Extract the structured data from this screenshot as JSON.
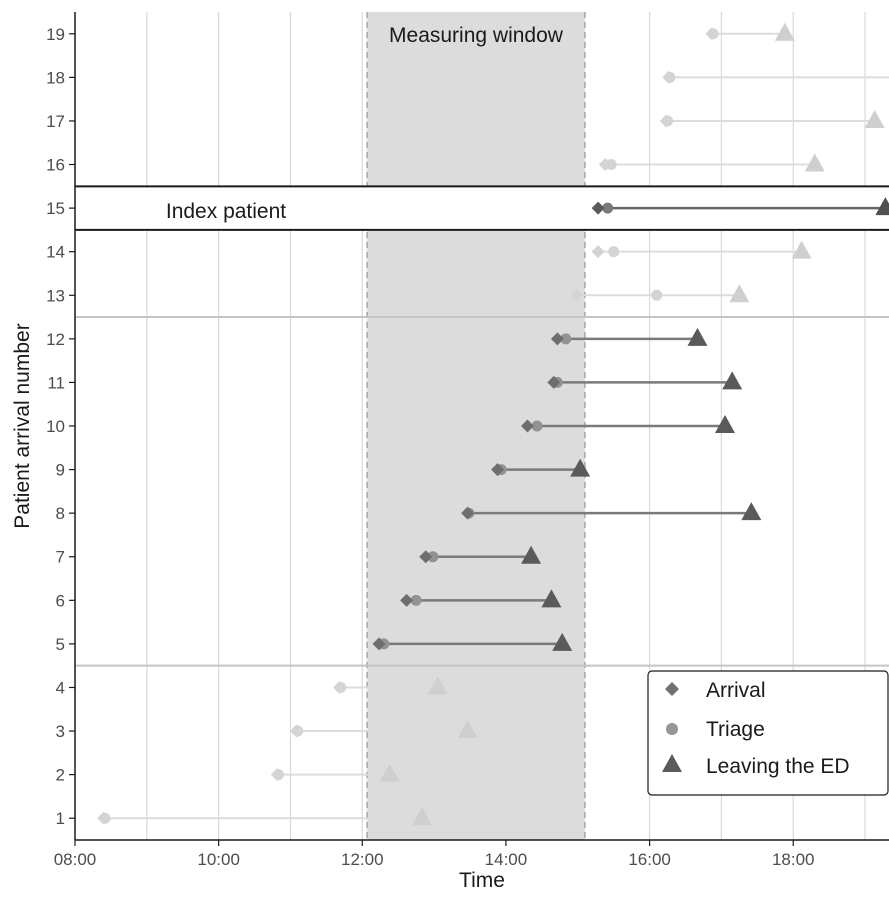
{
  "chart_data": {
    "type": "scatter",
    "title": "",
    "xlabel": "Time",
    "ylabel": "Patient arrival number",
    "xlim": [
      "08:00",
      "19:20"
    ],
    "ylim": [
      0.5,
      19.5
    ],
    "xticks": [
      "08:00",
      "10:00",
      "12:00",
      "14:00",
      "16:00",
      "18:00"
    ],
    "yticks": [
      "1",
      "2",
      "3",
      "4",
      "5",
      "6",
      "7",
      "8",
      "9",
      "10",
      "11",
      "12",
      "13",
      "14",
      "15",
      "16",
      "17",
      "18",
      "19"
    ],
    "grid": true,
    "legend_position": "bottom-right",
    "measuring_window": {
      "label": "Measuring window",
      "start": "12:04",
      "end": "15:06"
    },
    "index_patient": {
      "label": "Index patient",
      "patient": 15
    },
    "group_separators": [
      4.5,
      12.5
    ],
    "series": [
      {
        "name": "Arrival",
        "marker": "diamond"
      },
      {
        "name": "Triage",
        "marker": "circle"
      },
      {
        "name": "Leaving the ED",
        "marker": "triangle"
      }
    ],
    "patients": [
      {
        "id": 1,
        "arrival": "08:24",
        "triage": "08:25",
        "leave": "12:50",
        "emphasis": "faded"
      },
      {
        "id": 2,
        "arrival": "10:49",
        "triage": "10:50",
        "leave": "12:23",
        "emphasis": "faded"
      },
      {
        "id": 3,
        "arrival": "11:05",
        "triage": "11:06",
        "leave": "13:28",
        "emphasis": "faded"
      },
      {
        "id": 4,
        "arrival": "11:41",
        "triage": "11:42",
        "leave": "13:03",
        "emphasis": "faded"
      },
      {
        "id": 5,
        "arrival": "12:14",
        "triage": "12:18",
        "leave": "14:47",
        "emphasis": "strong"
      },
      {
        "id": 6,
        "arrival": "12:37",
        "triage": "12:45",
        "leave": "14:38",
        "emphasis": "strong"
      },
      {
        "id": 7,
        "arrival": "12:53",
        "triage": "12:59",
        "leave": "14:21",
        "emphasis": "strong"
      },
      {
        "id": 8,
        "arrival": "13:28",
        "triage": "13:29",
        "leave": "17:25",
        "emphasis": "strong"
      },
      {
        "id": 9,
        "arrival": "13:53",
        "triage": "13:56",
        "leave": "15:02",
        "emphasis": "strong"
      },
      {
        "id": 10,
        "arrival": "14:18",
        "triage": "14:26",
        "leave": "17:03",
        "emphasis": "strong"
      },
      {
        "id": 11,
        "arrival": "14:40",
        "triage": "14:43",
        "leave": "17:09",
        "emphasis": "strong"
      },
      {
        "id": 12,
        "arrival": "14:43",
        "triage": "14:50",
        "leave": "16:40",
        "emphasis": "strong"
      },
      {
        "id": 13,
        "arrival": "14:59",
        "triage": "16:06",
        "leave": "17:15",
        "emphasis": "faded"
      },
      {
        "id": 14,
        "arrival": "15:17",
        "triage": "15:30",
        "leave": "18:07",
        "emphasis": "faded"
      },
      {
        "id": 15,
        "arrival": "15:17",
        "triage": "15:25",
        "leave": "19:17",
        "emphasis": "index"
      },
      {
        "id": 16,
        "arrival": "15:23",
        "triage": "15:28",
        "leave": "18:18",
        "emphasis": "faded"
      },
      {
        "id": 17,
        "arrival": "16:14",
        "triage": "16:15",
        "leave": "19:08",
        "emphasis": "faded"
      },
      {
        "id": 18,
        "arrival": "16:16",
        "triage": "16:17",
        "leave": "19:40",
        "emphasis": "faded"
      },
      {
        "id": 19,
        "arrival": "16:52",
        "triage": "16:53",
        "leave": "17:53",
        "emphasis": "faded"
      }
    ]
  }
}
